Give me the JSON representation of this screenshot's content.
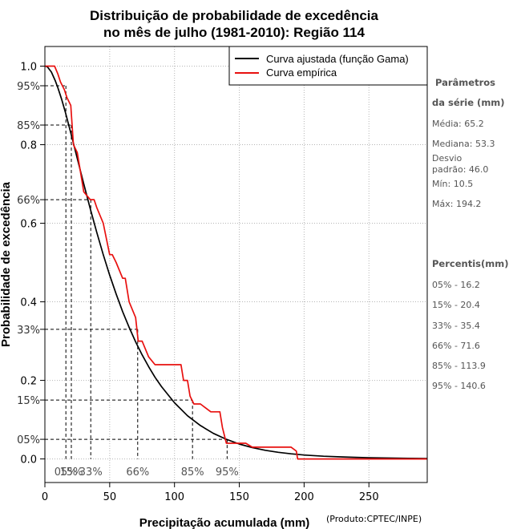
{
  "chart_data": {
    "type": "line",
    "title": [
      "Distribuição de probabilidade de excedência",
      "no mês de julho (1981-2010): Região 114"
    ],
    "xlabel": "Precipitação acumulada (mm)",
    "ylabel": "Probabilidade de excedência",
    "credit": "(Produto:CPTEC/INPE)",
    "xlim": [
      0,
      295
    ],
    "ylim": [
      -0.06,
      1.05
    ],
    "xticks": [
      0,
      50,
      100,
      150,
      200,
      250
    ],
    "yticks": [
      {
        "value": 1.0,
        "label": "1.0"
      },
      {
        "value": 0.8,
        "label": "0.8"
      },
      {
        "value": 0.6,
        "label": "0.6"
      },
      {
        "value": 0.4,
        "label": "0.4"
      },
      {
        "value": 0.2,
        "label": "0.2"
      },
      {
        "value": 0.0,
        "label": "0.0"
      }
    ],
    "ypct_ticks": [
      {
        "value": 0.95,
        "label": "95%"
      },
      {
        "value": 0.85,
        "label": "85%"
      },
      {
        "value": 0.66,
        "label": "66%"
      },
      {
        "value": 0.33,
        "label": "33%"
      },
      {
        "value": 0.15,
        "label": "15%"
      },
      {
        "value": 0.05,
        "label": "05%"
      }
    ],
    "grid": true,
    "legend": {
      "position": "top-right",
      "items": [
        {
          "label": "Curva ajustada (função Gama)",
          "color": "#000000"
        },
        {
          "label": "Curva empírica",
          "color": "#e8100f"
        }
      ]
    },
    "series": [
      {
        "name": "Curva ajustada (função Gama)",
        "color": "#000000",
        "x": [
          0,
          2,
          5,
          8,
          10,
          13,
          16,
          20,
          25,
          30,
          35,
          40,
          45,
          50,
          55,
          60,
          65,
          70,
          75,
          80,
          85,
          90,
          100,
          110,
          120,
          130,
          140,
          150,
          160,
          170,
          180,
          190,
          200,
          215,
          230,
          250,
          270,
          295
        ],
        "y": [
          1.0,
          0.998,
          0.985,
          0.963,
          0.945,
          0.915,
          0.88,
          0.83,
          0.765,
          0.7,
          0.637,
          0.577,
          0.52,
          0.468,
          0.42,
          0.375,
          0.335,
          0.298,
          0.265,
          0.235,
          0.208,
          0.184,
          0.143,
          0.11,
          0.085,
          0.065,
          0.05,
          0.038,
          0.029,
          0.022,
          0.017,
          0.013,
          0.01,
          0.007,
          0.005,
          0.003,
          0.002,
          0.001
        ]
      },
      {
        "name": "Curva empírica",
        "color": "#e8100f",
        "x": [
          0,
          7,
          7.5,
          10,
          12,
          15,
          17,
          20,
          22,
          25,
          30,
          35,
          38,
          40,
          45,
          50,
          52,
          55,
          60,
          62,
          65,
          70,
          72,
          75,
          80,
          85,
          90,
          100,
          105,
          107,
          110,
          112,
          115,
          120,
          128,
          135,
          137,
          140,
          145,
          150,
          155,
          160,
          170,
          180,
          190,
          194,
          195,
          200,
          260,
          295
        ],
        "y": [
          1.0,
          1.0,
          1.0,
          0.98,
          0.96,
          0.94,
          0.92,
          0.9,
          0.8,
          0.78,
          0.68,
          0.66,
          0.66,
          0.64,
          0.6,
          0.52,
          0.52,
          0.5,
          0.46,
          0.46,
          0.4,
          0.36,
          0.3,
          0.3,
          0.26,
          0.24,
          0.24,
          0.24,
          0.24,
          0.2,
          0.2,
          0.16,
          0.14,
          0.14,
          0.12,
          0.12,
          0.08,
          0.04,
          0.04,
          0.04,
          0.04,
          0.03,
          0.03,
          0.03,
          0.03,
          0.02,
          0.0,
          0.0,
          0.0,
          0.0
        ]
      }
    ],
    "percentile_markers": [
      {
        "p": 0.95,
        "x": 16.2,
        "label": "05%"
      },
      {
        "p": 0.85,
        "x": 20.4,
        "label": "15%"
      },
      {
        "p": 0.66,
        "x": 35.4,
        "label": "33%"
      },
      {
        "p": 0.33,
        "x": 71.6,
        "label": "66%"
      },
      {
        "p": 0.15,
        "x": 113.9,
        "label": "85%"
      },
      {
        "p": 0.05,
        "x": 140.6,
        "label": "95%"
      }
    ]
  },
  "sidebar": {
    "params_header": "Parâmetros",
    "params_header2": "da série (mm)",
    "media": "Média: 65.2",
    "mediana": "Mediana: 53.3",
    "desvio1": "Desvio",
    "desvio2": "padrão: 46.0",
    "min": "Mín: 10.5",
    "max": "Máx: 194.2",
    "percentis_header": "Percentis(mm)",
    "percentis": [
      "05% - 16.2",
      "15% - 20.4",
      "33% - 35.4",
      "66% - 71.6",
      "85% - 113.9",
      "95% - 140.6"
    ]
  }
}
